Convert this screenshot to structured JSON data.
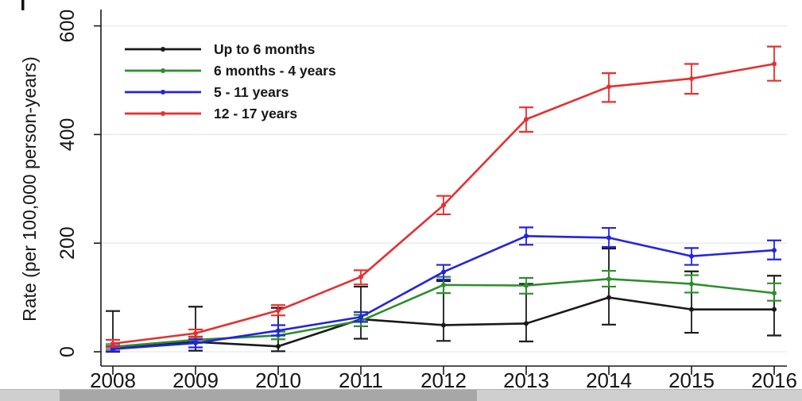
{
  "chart_data": {
    "type": "line",
    "title": "",
    "xlabel": "",
    "ylabel": "Rate (per 100,000 person-years)",
    "x": [
      2008,
      2009,
      2010,
      2011,
      2012,
      2013,
      2014,
      2015,
      2016
    ],
    "x_tick_labels": [
      "2008",
      "2009",
      "2010",
      "2011",
      "2012",
      "2013",
      "2014",
      "2015",
      "2016"
    ],
    "y_ticks": [
      0,
      200,
      400,
      600
    ],
    "y_tick_labels": [
      "0",
      "200",
      "400",
      "600"
    ],
    "ylim": [
      0,
      645
    ],
    "grid": "horizontal",
    "gridline_color": "#e9edee",
    "axis_color": "#1a1a1a",
    "error_bars": true,
    "legend_position": "top-left-inside",
    "series": [
      {
        "name": "Up to 6 months",
        "color": "#1a1a1a",
        "values": [
          8,
          18,
          10,
          60,
          49,
          52,
          100,
          78,
          78
        ],
        "ci_low": [
          0,
          2,
          1,
          24,
          20,
          19,
          50,
          35,
          30
        ],
        "ci_high": [
          75,
          83,
          81,
          120,
          130,
          125,
          190,
          148,
          140
        ]
      },
      {
        "name": "6 months - 4 years",
        "color": "#2d8e2d",
        "values": [
          9,
          22,
          30,
          57,
          123,
          122,
          134,
          125,
          108
        ],
        "ci_low": [
          5,
          16,
          23,
          47,
          108,
          107,
          120,
          109,
          94
        ],
        "ci_high": [
          14,
          28,
          37,
          68,
          138,
          136,
          149,
          141,
          126
        ]
      },
      {
        "name": "5 - 11 years",
        "color": "#2424dd",
        "values": [
          5,
          16,
          39,
          64,
          147,
          213,
          210,
          176,
          187
        ],
        "ci_low": [
          1,
          8,
          30,
          55,
          133,
          197,
          193,
          160,
          170
        ],
        "ci_high": [
          10,
          23,
          49,
          73,
          160,
          229,
          228,
          191,
          205
        ]
      },
      {
        "name": "12 - 17 years",
        "color": "#e53030",
        "values": [
          15,
          34,
          76,
          138,
          270,
          428,
          488,
          503,
          530
        ],
        "ci_low": [
          9,
          27,
          67,
          124,
          253,
          405,
          460,
          475,
          499
        ],
        "ci_high": [
          22,
          41,
          86,
          150,
          287,
          450,
          513,
          530,
          562
        ]
      }
    ]
  },
  "ui": {
    "scrollbar": {
      "orientation": "horizontal",
      "track_color": "#cfcfcf",
      "thumb_color": "#a7a7a7"
    }
  }
}
